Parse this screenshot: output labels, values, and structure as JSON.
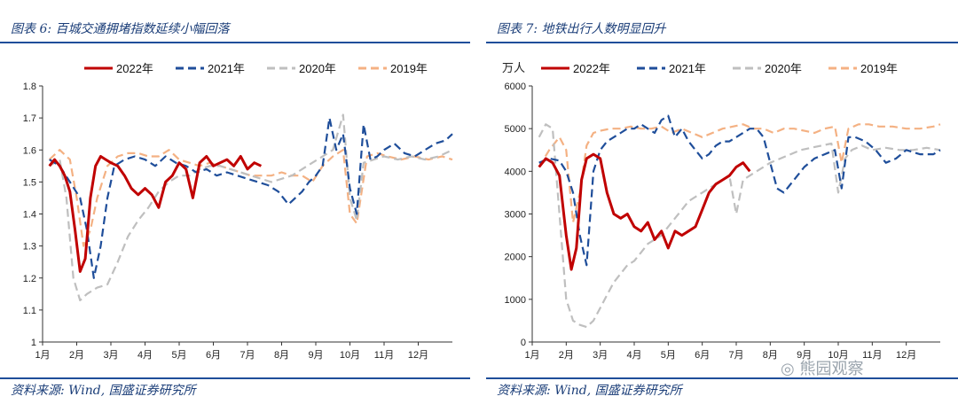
{
  "left_panel": {
    "title": "图表 6: 百城交通拥堵指数延续小幅回落",
    "source": "资料来源: Wind, 国盛证券研究所"
  },
  "right_panel": {
    "title": "图表 7: 地铁出行人数明显回升",
    "source": "资料来源: Wind, 国盛证券研究所"
  },
  "watermark": {
    "text": "熊园观察"
  },
  "chart_data": [
    {
      "type": "line",
      "title": "",
      "xlabel": "",
      "ylabel": "",
      "x_ticks": [
        "1月",
        "2月",
        "3月",
        "4月",
        "5月",
        "6月",
        "7月",
        "8月",
        "9月",
        "10月",
        "11月",
        "12月"
      ],
      "y_ticks": [
        "1",
        "1.1",
        "1.2",
        "1.3",
        "1.4",
        "1.5",
        "1.6",
        "1.7",
        "1.8"
      ],
      "ylim": [
        1.0,
        1.8
      ],
      "xlim": [
        1.0,
        13.0
      ],
      "grid": false,
      "legend_position": "top",
      "series": [
        {
          "name": "2022年",
          "color": "#c00000",
          "style": "solid",
          "x": [
            1.2,
            1.35,
            1.5,
            1.65,
            1.8,
            1.95,
            2.1,
            2.25,
            2.4,
            2.55,
            2.7,
            2.85,
            3.0,
            3.2,
            3.4,
            3.6,
            3.8,
            4.0,
            4.2,
            4.4,
            4.6,
            4.8,
            5.0,
            5.2,
            5.4,
            5.6,
            5.8,
            6.0,
            6.2,
            6.4,
            6.6,
            6.8,
            7.0,
            7.2,
            7.4
          ],
          "y": [
            1.55,
            1.57,
            1.55,
            1.52,
            1.47,
            1.35,
            1.22,
            1.26,
            1.45,
            1.55,
            1.58,
            1.57,
            1.56,
            1.55,
            1.52,
            1.48,
            1.46,
            1.48,
            1.46,
            1.42,
            1.5,
            1.52,
            1.56,
            1.54,
            1.45,
            1.56,
            1.58,
            1.55,
            1.56,
            1.57,
            1.55,
            1.58,
            1.54,
            1.56,
            1.55
          ]
        },
        {
          "name": "2021年",
          "color": "#1f4e9a",
          "style": "dashed",
          "x": [
            1.2,
            1.5,
            1.8,
            2.1,
            2.3,
            2.5,
            2.7,
            2.9,
            3.1,
            3.4,
            3.7,
            4.0,
            4.3,
            4.6,
            4.9,
            5.2,
            5.5,
            5.8,
            6.1,
            6.4,
            6.7,
            7.0,
            7.3,
            7.6,
            7.9,
            8.2,
            8.4,
            8.6,
            8.8,
            9.0,
            9.2,
            9.4,
            9.6,
            9.8,
            10.0,
            10.2,
            10.4,
            10.6,
            10.8,
            11.0,
            11.3,
            11.6,
            11.9,
            12.2,
            12.5,
            12.8,
            13.0
          ],
          "y": [
            1.57,
            1.55,
            1.5,
            1.45,
            1.35,
            1.2,
            1.3,
            1.45,
            1.55,
            1.57,
            1.58,
            1.57,
            1.55,
            1.58,
            1.56,
            1.55,
            1.53,
            1.54,
            1.52,
            1.53,
            1.52,
            1.51,
            1.5,
            1.49,
            1.47,
            1.43,
            1.45,
            1.47,
            1.5,
            1.52,
            1.55,
            1.7,
            1.6,
            1.65,
            1.48,
            1.4,
            1.68,
            1.57,
            1.58,
            1.6,
            1.62,
            1.59,
            1.58,
            1.6,
            1.62,
            1.63,
            1.65
          ]
        },
        {
          "name": "2020年",
          "color": "#bfbfbf",
          "style": "dashed",
          "x": [
            1.2,
            1.5,
            1.7,
            1.9,
            2.1,
            2.3,
            2.6,
            2.9,
            3.2,
            3.5,
            3.8,
            4.1,
            4.4,
            4.7,
            5.0,
            5.3,
            5.6,
            5.9,
            6.2,
            6.5,
            6.8,
            7.1,
            7.4,
            7.7,
            8.0,
            8.3,
            8.6,
            8.9,
            9.2,
            9.5,
            9.8,
            10.0,
            10.2,
            10.4,
            10.7,
            11.0,
            11.4,
            11.8,
            12.2,
            12.6,
            13.0
          ],
          "y": [
            1.55,
            1.57,
            1.45,
            1.2,
            1.13,
            1.15,
            1.17,
            1.18,
            1.25,
            1.33,
            1.38,
            1.42,
            1.47,
            1.5,
            1.52,
            1.52,
            1.54,
            1.55,
            1.55,
            1.54,
            1.53,
            1.52,
            1.51,
            1.5,
            1.51,
            1.52,
            1.54,
            1.56,
            1.58,
            1.6,
            1.71,
            1.45,
            1.38,
            1.56,
            1.57,
            1.58,
            1.57,
            1.58,
            1.57,
            1.58,
            1.6
          ]
        },
        {
          "name": "2019年",
          "color": "#f4b183",
          "style": "dashed",
          "x": [
            1.2,
            1.5,
            1.8,
            2.0,
            2.2,
            2.4,
            2.6,
            2.9,
            3.2,
            3.5,
            3.8,
            4.1,
            4.4,
            4.7,
            5.0,
            5.3,
            5.6,
            5.9,
            6.2,
            6.5,
            6.8,
            7.1,
            7.4,
            7.7,
            8.0,
            8.3,
            8.6,
            8.9,
            9.2,
            9.5,
            9.8,
            10.0,
            10.2,
            10.5,
            10.8,
            11.1,
            11.5,
            11.9,
            12.3,
            12.7,
            13.0
          ],
          "y": [
            1.57,
            1.6,
            1.57,
            1.45,
            1.3,
            1.35,
            1.45,
            1.55,
            1.58,
            1.59,
            1.59,
            1.58,
            1.58,
            1.6,
            1.57,
            1.56,
            1.55,
            1.56,
            1.55,
            1.54,
            1.53,
            1.52,
            1.52,
            1.52,
            1.53,
            1.52,
            1.52,
            1.5,
            1.55,
            1.58,
            1.6,
            1.4,
            1.37,
            1.58,
            1.59,
            1.58,
            1.57,
            1.58,
            1.57,
            1.58,
            1.57
          ]
        }
      ]
    },
    {
      "type": "line",
      "title": "",
      "xlabel": "",
      "ylabel": "万人",
      "x_ticks": [
        "1月",
        "2月",
        "3月",
        "4月",
        "5月",
        "6月",
        "7月",
        "8月",
        "9月",
        "10月",
        "11月",
        "12月"
      ],
      "y_ticks": [
        "0",
        "1000",
        "2000",
        "3000",
        "4000",
        "5000",
        "6000"
      ],
      "ylim": [
        0,
        6000
      ],
      "xlim": [
        1.0,
        13.0
      ],
      "grid": false,
      "legend_position": "top",
      "series": [
        {
          "name": "2022年",
          "color": "#c00000",
          "style": "solid",
          "x": [
            1.2,
            1.4,
            1.6,
            1.8,
            2.0,
            2.15,
            2.3,
            2.45,
            2.6,
            2.8,
            3.0,
            3.2,
            3.4,
            3.6,
            3.8,
            4.0,
            4.2,
            4.4,
            4.6,
            4.8,
            5.0,
            5.2,
            5.4,
            5.6,
            5.8,
            6.0,
            6.2,
            6.4,
            6.6,
            6.8,
            7.0,
            7.2,
            7.4
          ],
          "y": [
            4100,
            4300,
            4200,
            3900,
            2500,
            1700,
            2200,
            3800,
            4300,
            4400,
            4300,
            3500,
            3000,
            2900,
            3000,
            2700,
            2600,
            2800,
            2400,
            2600,
            2200,
            2600,
            2500,
            2600,
            2700,
            3100,
            3500,
            3700,
            3800,
            3900,
            4100,
            4200,
            4000
          ]
        },
        {
          "name": "2021年",
          "color": "#1f4e9a",
          "style": "dashed",
          "x": [
            1.2,
            1.5,
            1.8,
            2.0,
            2.2,
            2.4,
            2.6,
            2.8,
            3.0,
            3.2,
            3.4,
            3.6,
            3.8,
            4.0,
            4.2,
            4.4,
            4.6,
            4.8,
            5.0,
            5.2,
            5.4,
            5.6,
            5.8,
            6.0,
            6.2,
            6.4,
            6.6,
            6.8,
            7.0,
            7.2,
            7.4,
            7.6,
            7.8,
            8.0,
            8.2,
            8.4,
            8.6,
            8.8,
            9.0,
            9.3,
            9.6,
            9.9,
            10.1,
            10.3,
            10.5,
            10.8,
            11.1,
            11.4,
            11.7,
            12.0,
            12.4,
            12.8,
            13.0
          ],
          "y": [
            4200,
            4300,
            4250,
            4000,
            3500,
            2500,
            1800,
            4000,
            4500,
            4700,
            4800,
            4900,
            5000,
            5000,
            5100,
            5000,
            4900,
            5200,
            5300,
            4800,
            5000,
            4700,
            4500,
            4300,
            4400,
            4600,
            4700,
            4700,
            4800,
            4900,
            5000,
            5000,
            4800,
            4200,
            3600,
            3500,
            3700,
            3900,
            4100,
            4300,
            4400,
            4500,
            3600,
            4800,
            4800,
            4700,
            4500,
            4200,
            4300,
            4500,
            4400,
            4400,
            4500
          ]
        },
        {
          "name": "2020年",
          "color": "#bfbfbf",
          "style": "dashed",
          "x": [
            1.2,
            1.4,
            1.6,
            1.8,
            2.0,
            2.2,
            2.4,
            2.6,
            2.8,
            3.0,
            3.2,
            3.4,
            3.6,
            3.8,
            4.0,
            4.2,
            4.4,
            4.6,
            4.8,
            5.0,
            5.2,
            5.4,
            5.6,
            5.8,
            6.0,
            6.2,
            6.4,
            6.6,
            6.8,
            7.0,
            7.2,
            7.4,
            7.6,
            7.8,
            8.0,
            8.3,
            8.6,
            8.9,
            9.2,
            9.5,
            9.8,
            10.0,
            10.2,
            10.4,
            10.7,
            11.0,
            11.4,
            11.8,
            12.2,
            12.6,
            13.0
          ],
          "y": [
            4800,
            5100,
            5000,
            3000,
            1000,
            500,
            400,
            350,
            500,
            800,
            1100,
            1400,
            1600,
            1800,
            1900,
            2100,
            2300,
            2400,
            2500,
            2700,
            2900,
            3100,
            3300,
            3400,
            3500,
            3600,
            3700,
            3800,
            3900,
            3000,
            3800,
            3900,
            4000,
            4100,
            4200,
            4300,
            4400,
            4500,
            4550,
            4600,
            4650,
            3500,
            4300,
            4500,
            4600,
            4500,
            4550,
            4500,
            4500,
            4550,
            4500
          ]
        },
        {
          "name": "2019年",
          "color": "#f4b183",
          "style": "dashed",
          "x": [
            1.2,
            1.5,
            1.8,
            2.0,
            2.2,
            2.4,
            2.6,
            2.8,
            3.0,
            3.3,
            3.6,
            3.9,
            4.2,
            4.5,
            4.8,
            5.1,
            5.4,
            5.7,
            6.0,
            6.3,
            6.6,
            6.9,
            7.2,
            7.5,
            7.8,
            8.1,
            8.4,
            8.7,
            9.0,
            9.3,
            9.6,
            9.9,
            10.1,
            10.3,
            10.6,
            10.9,
            11.2,
            11.6,
            12.0,
            12.4,
            12.8,
            13.0
          ],
          "y": [
            4100,
            4500,
            4800,
            4500,
            2800,
            3500,
            4600,
            4900,
            4950,
            5000,
            5000,
            5050,
            5000,
            5000,
            5050,
            4900,
            5000,
            4900,
            4800,
            4900,
            5000,
            5050,
            5100,
            5000,
            5000,
            4900,
            5000,
            5000,
            4950,
            4900,
            5000,
            5050,
            4200,
            5000,
            5100,
            5100,
            5050,
            5050,
            5000,
            5000,
            5050,
            5100
          ]
        }
      ]
    }
  ]
}
